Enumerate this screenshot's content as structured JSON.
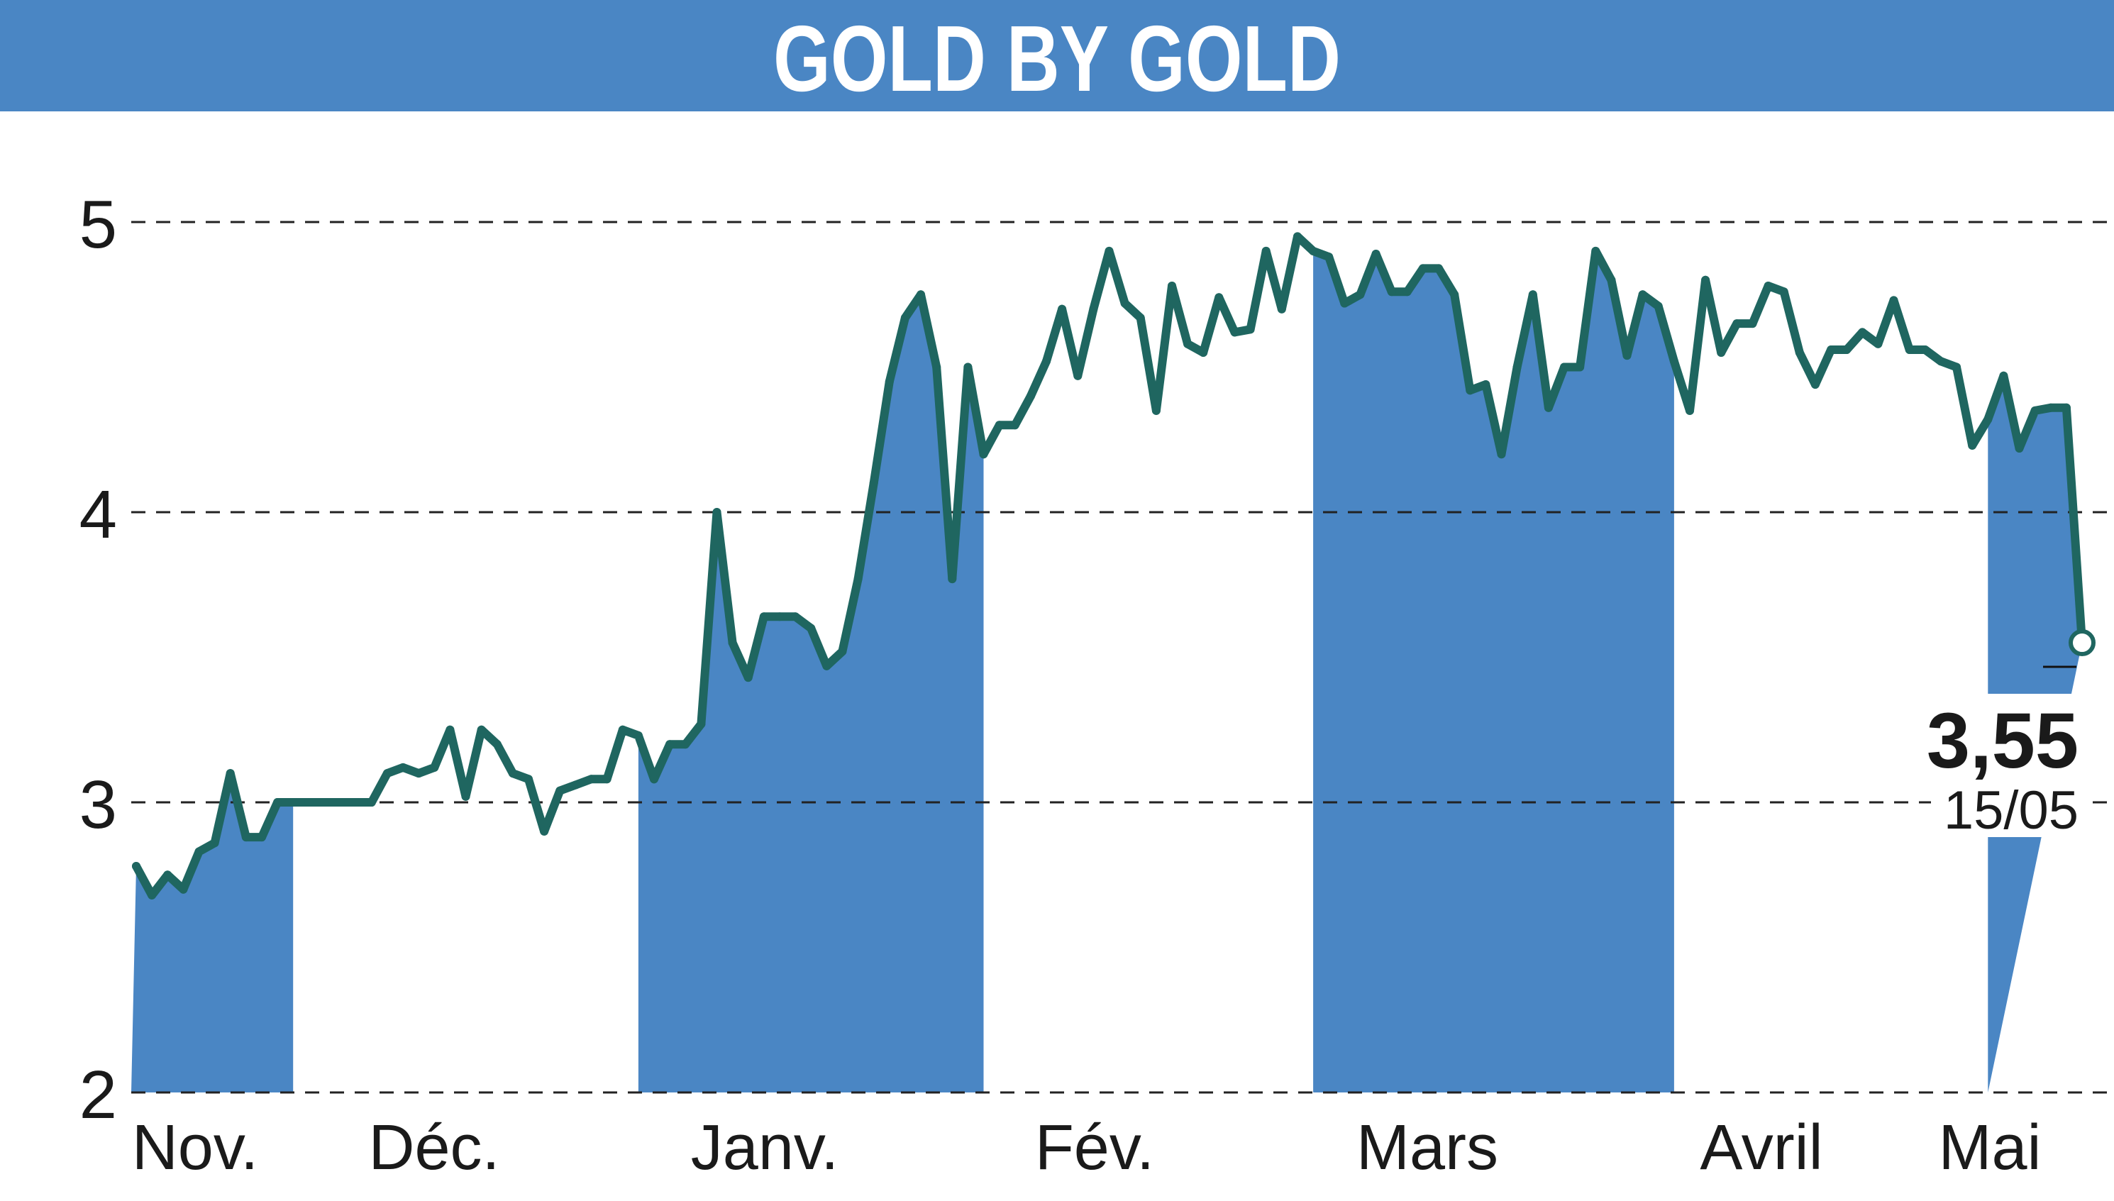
{
  "header": {
    "title": "GOLD BY GOLD"
  },
  "colors": {
    "banner": "#4a86c4",
    "band": "#4a86c4",
    "line": "#1f6660",
    "grid": "#222222"
  },
  "chart_data": {
    "type": "line",
    "title": "GOLD BY GOLD",
    "ylim": [
      2,
      5
    ],
    "yticks": [
      "2",
      "3",
      "4",
      "5"
    ],
    "grid": true,
    "months": [
      {
        "label": "Nov.",
        "start": 0,
        "end": 10,
        "shaded": true
      },
      {
        "label": "Déc.",
        "start": 10,
        "end": 32,
        "shaded": false
      },
      {
        "label": "Janv.",
        "start": 32,
        "end": 54,
        "shaded": true
      },
      {
        "label": "Fév.",
        "start": 54,
        "end": 75,
        "shaded": false
      },
      {
        "label": "Mars",
        "start": 75,
        "end": 98,
        "shaded": true
      },
      {
        "label": "Avril",
        "start": 98,
        "end": 118,
        "shaded": false
      },
      {
        "label": "Mai",
        "start": 118,
        "end": 128,
        "shaded": true
      }
    ],
    "series": [
      {
        "values": [
          2.78,
          2.68,
          2.75,
          2.7,
          2.83,
          2.86,
          3.1,
          2.88,
          2.88,
          3.0,
          3.0,
          3.0,
          3.0,
          3.0,
          3.0,
          3.0,
          3.1,
          3.12,
          3.1,
          3.12,
          3.25,
          3.02,
          3.25,
          3.2,
          3.1,
          3.08,
          2.9,
          3.04,
          3.06,
          3.08,
          3.08,
          3.25,
          3.23,
          3.08,
          3.2,
          3.2,
          3.27,
          4.0,
          3.55,
          3.43,
          3.64,
          3.64,
          3.64,
          3.6,
          3.47,
          3.52,
          3.77,
          4.1,
          4.45,
          4.67,
          4.75,
          4.5,
          3.77,
          4.5,
          4.2,
          4.3,
          4.3,
          4.4,
          4.52,
          4.7,
          4.47,
          4.7,
          4.9,
          4.72,
          4.67,
          4.35,
          4.78,
          4.58,
          4.55,
          4.74,
          4.62,
          4.63,
          4.9,
          4.7,
          4.95,
          4.9,
          4.88,
          4.72,
          4.75,
          4.89,
          4.76,
          4.76,
          4.84,
          4.84,
          4.75,
          4.42,
          4.44,
          4.2,
          4.5,
          4.75,
          4.36,
          4.5,
          4.5,
          4.9,
          4.8,
          4.54,
          4.75,
          4.71,
          4.52,
          4.35,
          4.8,
          4.55,
          4.65,
          4.65,
          4.78,
          4.76,
          4.55,
          4.44,
          4.56,
          4.56,
          4.62,
          4.58,
          4.73,
          4.56,
          4.56,
          4.52,
          4.5,
          4.23,
          4.32,
          4.47,
          4.22,
          4.35,
          4.36,
          4.36,
          3.55
        ]
      }
    ],
    "last": {
      "value": "3,55",
      "date": "15/05"
    }
  }
}
